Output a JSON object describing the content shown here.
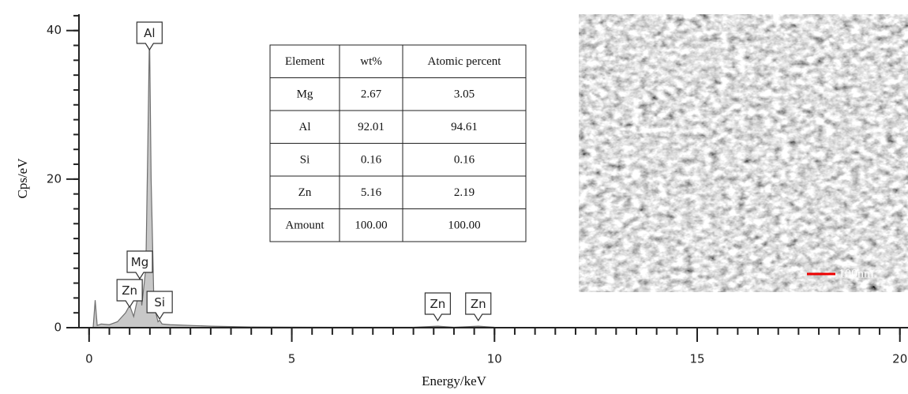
{
  "chart_data": {
    "type": "area",
    "xlabel": "Energy/keV",
    "ylabel": "Cps/eV",
    "x": [
      0.1,
      0.15,
      0.2,
      0.3,
      0.5,
      0.7,
      0.9,
      1.0,
      1.1,
      1.2,
      1.25,
      1.3,
      1.4,
      1.45,
      1.49,
      1.53,
      1.6,
      1.7,
      1.74,
      1.8,
      2.0,
      2.5,
      3,
      4,
      6,
      8,
      8.6,
      9,
      9.6,
      10,
      12,
      15,
      20
    ],
    "values": [
      0,
      3.7,
      0.3,
      0.5,
      0.4,
      0.8,
      2,
      3,
      1.5,
      4,
      7,
      3,
      8,
      25,
      40,
      20,
      3,
      0.8,
      1,
      0.5,
      0.4,
      0.3,
      0.2,
      0.1,
      0.05,
      0.05,
      0.2,
      0.05,
      0.2,
      0.05,
      0.02,
      0.01,
      0
    ],
    "color": "#c8c8c8",
    "line_color": "#6e6e6e",
    "xlim": [
      -0.25,
      20.2
    ],
    "ylim": [
      0,
      42.2
    ],
    "xticks": [
      0,
      5,
      10,
      15,
      20
    ],
    "yticks": [
      0,
      20,
      40
    ],
    "x_minor_tick_step": 0.5,
    "y_minor_tick_step": 2,
    "annotations": [
      {
        "text": "Al",
        "x": 1.49
      },
      {
        "text": "Mg",
        "x": 1.25
      },
      {
        "text": "Zn",
        "x": 1.0
      },
      {
        "text": "Si",
        "x": 1.74
      },
      {
        "text": "Zn",
        "x": 8.6
      },
      {
        "text": "Zn",
        "x": 9.6
      }
    ]
  },
  "table": {
    "header": [
      "Element",
      "wt%",
      "Atomic percent"
    ],
    "rows": [
      [
        "Mg",
        "2.67",
        "3.05"
      ],
      [
        "Al",
        "92.01",
        "94.61"
      ],
      [
        "Si",
        "0.16",
        "0.16"
      ],
      [
        "Zn",
        "5.16",
        "2.19"
      ],
      [
        "Amount",
        "100.00",
        "100.00"
      ]
    ]
  },
  "inset_image": {
    "scale_label": "100nm"
  }
}
